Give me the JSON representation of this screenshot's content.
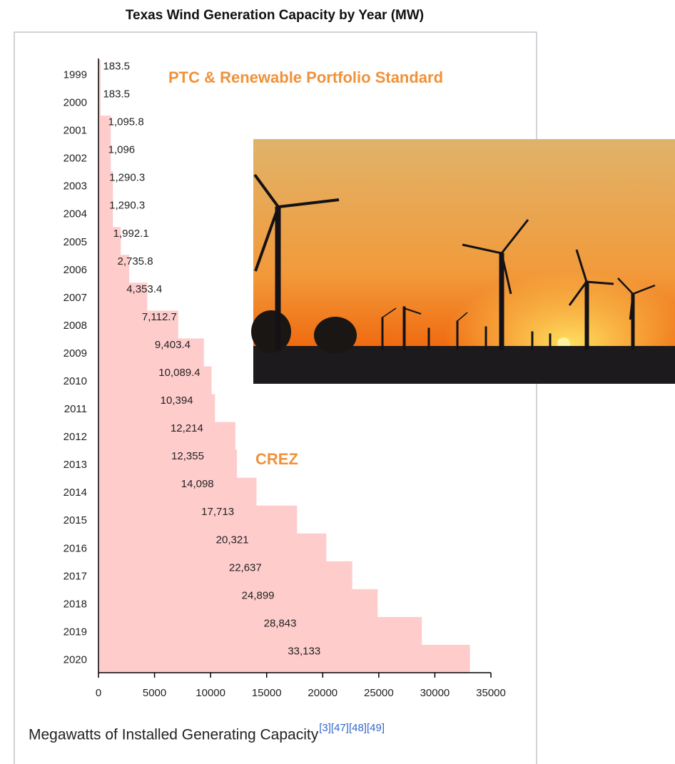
{
  "chart_data": {
    "type": "bar",
    "orientation": "horizontal",
    "title": "Texas Wind Generation Capacity by Year (MW)",
    "x_label": "Megawatts of Installed Generating Capacity",
    "citations": [
      "[3]",
      "[47]",
      "[48]",
      "[49]"
    ],
    "annotations": [
      "PTC & Renewable Portfolio Standard",
      "CREZ"
    ],
    "categories": [
      "1999",
      "2000",
      "2001",
      "2002",
      "2003",
      "2004",
      "2005",
      "2006",
      "2007",
      "2008",
      "2009",
      "2010",
      "2011",
      "2012",
      "2013",
      "2014",
      "2015",
      "2016",
      "2017",
      "2018",
      "2019",
      "2020"
    ],
    "values": [
      183.5,
      183.5,
      1095.8,
      1096,
      1290.3,
      1290.3,
      1992.1,
      2735.8,
      4353.4,
      7112.7,
      9403.4,
      10089.4,
      10394,
      12214,
      12355,
      14098,
      17713,
      20321,
      22637,
      24899,
      28843,
      33133
    ],
    "value_labels": [
      "183.5",
      "183.5",
      "1,095.8",
      "1,096",
      "1,290.3",
      "1,290.3",
      "1,992.1",
      "2,735.8",
      "4,353.4",
      "7,112.7",
      "9,403.4",
      "10,089.4",
      "10,394",
      "12,214",
      "12,355",
      "14,098",
      "17,713",
      "20,321",
      "22,637",
      "24,899",
      "28,843",
      "33,133"
    ],
    "color": "#ffcccc",
    "annotation_color": "#f0923a",
    "citation_color": "#3366cc",
    "xlim": [
      0,
      35000
    ],
    "xticks": [
      0,
      5000,
      10000,
      15000,
      20000,
      25000,
      30000,
      35000
    ]
  }
}
